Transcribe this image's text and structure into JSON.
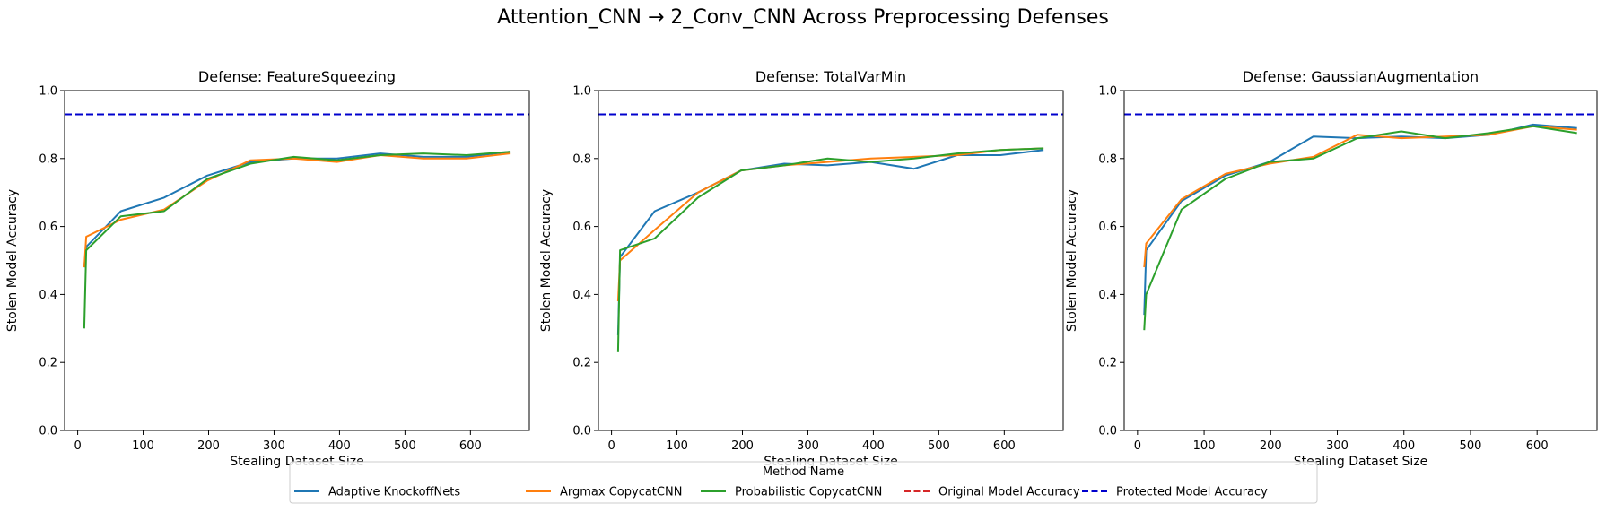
{
  "figure": {
    "suptitle": "Attention_CNN → 2_Conv_CNN Across Preprocessing Defenses"
  },
  "legend": {
    "title": "Method Name",
    "placement": "bottom-center",
    "entries": [
      {
        "label": "Adaptive KnockoffNets",
        "color": "#1f77b4",
        "style": "solid"
      },
      {
        "label": "Argmax CopycatCNN",
        "color": "#ff7f0e",
        "style": "solid"
      },
      {
        "label": "Probabilistic CopycatCNN",
        "color": "#2ca02c",
        "style": "solid"
      },
      {
        "label": "Original Model Accuracy",
        "color": "#d62728",
        "style": "dashed"
      },
      {
        "label": "Protected Model Accuracy",
        "color": "#0000cd",
        "style": "dashed"
      }
    ]
  },
  "chart_data": [
    {
      "type": "line",
      "title": "Defense: FeatureSqueezing",
      "xlabel": "Stealing Dataset Size",
      "ylabel": "Stolen Model Accuracy",
      "xlim": [
        -20,
        690
      ],
      "ylim": [
        0,
        1
      ],
      "xticks": [
        0,
        100,
        200,
        300,
        400,
        500,
        600
      ],
      "yticks": [
        0.0,
        0.2,
        0.4,
        0.6,
        0.8,
        1.0
      ],
      "grid": false,
      "protected_accuracy": 0.93,
      "series": [
        {
          "name": "Adaptive KnockoffNets",
          "color": "#1f77b4",
          "x": [
            10,
            13,
            66,
            132,
            198,
            264,
            330,
            396,
            462,
            528,
            594,
            660
          ],
          "y": [
            0.48,
            0.54,
            0.645,
            0.685,
            0.75,
            0.79,
            0.8,
            0.8,
            0.815,
            0.805,
            0.805,
            0.82
          ]
        },
        {
          "name": "Argmax CopycatCNN",
          "color": "#ff7f0e",
          "x": [
            10,
            13,
            66,
            132,
            198,
            264,
            330,
            396,
            462,
            528,
            594,
            660
          ],
          "y": [
            0.48,
            0.57,
            0.62,
            0.65,
            0.735,
            0.795,
            0.8,
            0.79,
            0.81,
            0.8,
            0.8,
            0.815
          ]
        },
        {
          "name": "Probabilistic CopycatCNN",
          "color": "#2ca02c",
          "x": [
            10,
            13,
            66,
            132,
            198,
            264,
            330,
            396,
            462,
            528,
            594,
            660
          ],
          "y": [
            0.3,
            0.53,
            0.63,
            0.645,
            0.74,
            0.785,
            0.805,
            0.795,
            0.81,
            0.815,
            0.81,
            0.82
          ]
        }
      ]
    },
    {
      "type": "line",
      "title": "Defense: TotalVarMin",
      "xlabel": "Stealing Dataset Size",
      "ylabel": "Stolen Model Accuracy",
      "xlim": [
        -20,
        690
      ],
      "ylim": [
        0,
        1
      ],
      "xticks": [
        0,
        100,
        200,
        300,
        400,
        500,
        600
      ],
      "yticks": [
        0.0,
        0.2,
        0.4,
        0.6,
        0.8,
        1.0
      ],
      "grid": false,
      "protected_accuracy": 0.93,
      "series": [
        {
          "name": "Adaptive KnockoffNets",
          "color": "#1f77b4",
          "x": [
            10,
            13,
            66,
            132,
            198,
            264,
            330,
            396,
            462,
            528,
            594,
            660
          ],
          "y": [
            0.28,
            0.51,
            0.645,
            0.7,
            0.765,
            0.785,
            0.78,
            0.79,
            0.77,
            0.81,
            0.81,
            0.825
          ]
        },
        {
          "name": "Argmax CopycatCNN",
          "color": "#ff7f0e",
          "x": [
            10,
            13,
            66,
            132,
            198,
            264,
            330,
            396,
            462,
            528,
            594,
            660
          ],
          "y": [
            0.38,
            0.5,
            0.59,
            0.7,
            0.765,
            0.78,
            0.79,
            0.8,
            0.805,
            0.81,
            0.825,
            0.83
          ]
        },
        {
          "name": "Probabilistic CopycatCNN",
          "color": "#2ca02c",
          "x": [
            10,
            13,
            66,
            132,
            198,
            264,
            330,
            396,
            462,
            528,
            594,
            660
          ],
          "y": [
            0.23,
            0.53,
            0.565,
            0.685,
            0.765,
            0.78,
            0.8,
            0.79,
            0.8,
            0.815,
            0.825,
            0.83
          ]
        }
      ]
    },
    {
      "type": "line",
      "title": "Defense: GaussianAugmentation",
      "xlabel": "Stealing Dataset Size",
      "ylabel": "Stolen Model Accuracy",
      "xlim": [
        -20,
        690
      ],
      "ylim": [
        0,
        1
      ],
      "xticks": [
        0,
        100,
        200,
        300,
        400,
        500,
        600
      ],
      "yticks": [
        0.0,
        0.2,
        0.4,
        0.6,
        0.8,
        1.0
      ],
      "grid": false,
      "protected_accuracy": 0.93,
      "series": [
        {
          "name": "Adaptive KnockoffNets",
          "color": "#1f77b4",
          "x": [
            10,
            13,
            66,
            132,
            198,
            264,
            330,
            396,
            462,
            528,
            594,
            660
          ],
          "y": [
            0.34,
            0.53,
            0.675,
            0.75,
            0.79,
            0.865,
            0.86,
            0.865,
            0.86,
            0.87,
            0.9,
            0.89
          ]
        },
        {
          "name": "Argmax CopycatCNN",
          "color": "#ff7f0e",
          "x": [
            10,
            13,
            66,
            132,
            198,
            264,
            330,
            396,
            462,
            528,
            594,
            660
          ],
          "y": [
            0.48,
            0.55,
            0.68,
            0.755,
            0.785,
            0.805,
            0.87,
            0.86,
            0.865,
            0.87,
            0.895,
            0.885
          ]
        },
        {
          "name": "Probabilistic CopycatCNN",
          "color": "#2ca02c",
          "x": [
            10,
            13,
            66,
            132,
            198,
            264,
            330,
            396,
            462,
            528,
            594,
            660
          ],
          "y": [
            0.295,
            0.4,
            0.65,
            0.74,
            0.79,
            0.8,
            0.86,
            0.88,
            0.86,
            0.875,
            0.895,
            0.875
          ]
        }
      ]
    }
  ]
}
